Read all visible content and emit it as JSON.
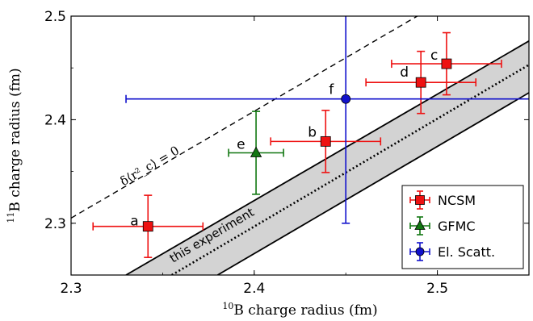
{
  "chart_data": {
    "type": "scatter",
    "xlabel": "B charge radius (fm)",
    "xlabel_sup": "10",
    "ylabel": "B charge radius (fm)",
    "ylabel_sup": "11",
    "xlim": [
      2.3,
      2.55
    ],
    "ylim": [
      2.25,
      2.5
    ],
    "xticks": [
      "2.3",
      "2.4",
      "2.5"
    ],
    "yticks": [
      "2.3",
      "2.4",
      "2.5"
    ],
    "colors": {
      "NCSM": "#ee1111",
      "GFMC": "#117711",
      "El. Scatt.": "#1111cc",
      "band": "#d3d3d3"
    },
    "series": [
      {
        "name": "NCSM",
        "marker": "square",
        "points": [
          {
            "label": "a",
            "x": 2.342,
            "y": 2.297,
            "xerr": 0.03,
            "yerr": 0.03
          },
          {
            "label": "b",
            "x": 2.439,
            "y": 2.379,
            "xerr": 0.03,
            "yerr": 0.03
          },
          {
            "label": "c",
            "x": 2.505,
            "y": 2.454,
            "xerr": 0.03,
            "yerr": 0.03
          },
          {
            "label": "d",
            "x": 2.491,
            "y": 2.436,
            "xerr": 0.03,
            "yerr": 0.03
          }
        ]
      },
      {
        "name": "GFMC",
        "marker": "triangle",
        "points": [
          {
            "label": "e",
            "x": 2.401,
            "y": 2.368,
            "xerr": 0.015,
            "yerr": 0.04
          }
        ]
      },
      {
        "name": "El. Scatt.",
        "marker": "circle",
        "points": [
          {
            "label": "f",
            "x": 2.45,
            "y": 2.42,
            "xerr": 0.12,
            "yerr": 0.12
          }
        ]
      }
    ],
    "lines": {
      "zero_line": {
        "label": "δ⟨r²_c⟩ = 0",
        "x": [
          2.3,
          2.489
        ],
        "y": [
          2.305,
          2.5
        ]
      },
      "band": {
        "label": "this experiment",
        "upper": {
          "x": [
            2.33,
            2.55
          ],
          "y": [
            2.25,
            2.476
          ]
        },
        "center": {
          "x": [
            2.355,
            2.55
          ],
          "y": [
            2.25,
            2.453
          ]
        },
        "lower": {
          "x": [
            2.38,
            2.55
          ],
          "y": [
            2.25,
            2.426
          ]
        }
      }
    },
    "legend": {
      "placement": "bottom-right",
      "entries": [
        "NCSM",
        "GFMC",
        "El. Scatt."
      ]
    }
  }
}
